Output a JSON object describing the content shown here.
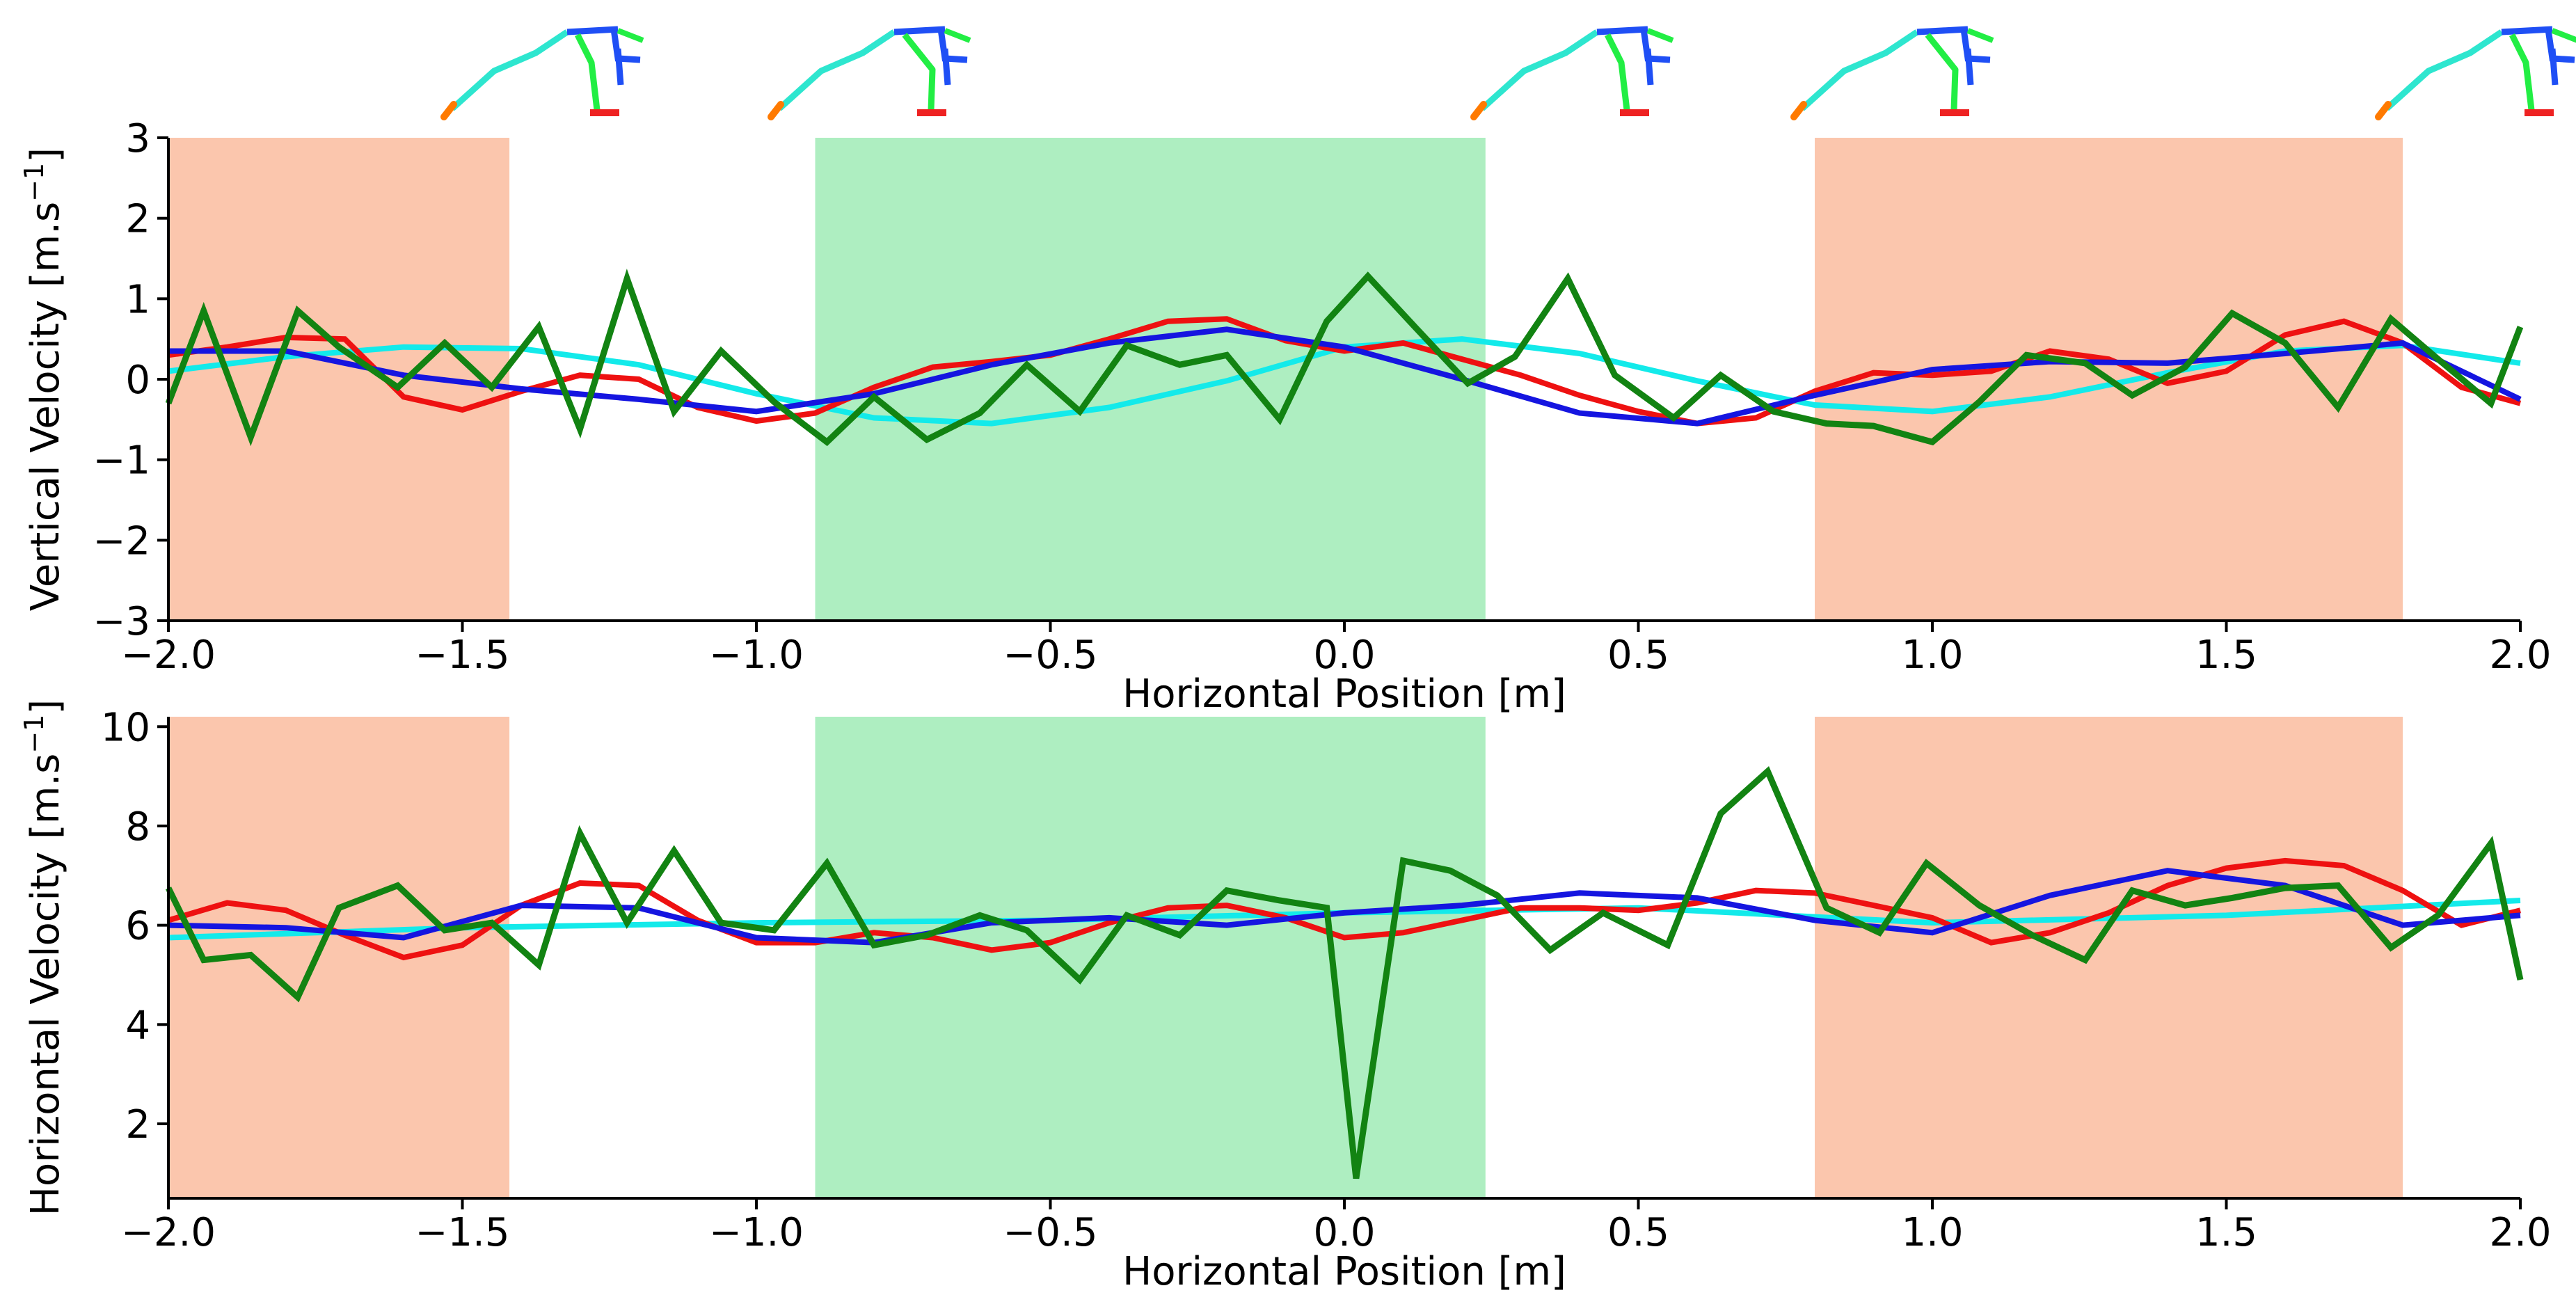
{
  "colors": {
    "stance_band": "#fbc6ad",
    "flight_band": "#aeeec1",
    "series_red": "#ee1111",
    "series_green": "#128312",
    "series_cyan": "#13eaea",
    "series_blue": "#1515e0",
    "skeleton_trunk": "#2ee6cf",
    "skeleton_arm": "#1f4ff5",
    "skeleton_leg": "#22ee44",
    "skeleton_foot": "#ee2222",
    "skeleton_toe": "#ff7a00"
  },
  "figure_icons": [
    "skeleton-pose-1-icon",
    "skeleton-pose-2-icon",
    "skeleton-pose-3-icon",
    "skeleton-pose-4-icon",
    "skeleton-pose-5-icon"
  ],
  "chart_data": [
    {
      "type": "line",
      "xlabel": "Horizontal Position [m]",
      "ylabel_main": "Vertical Velocity [m.s",
      "ylabel_sup": "−1",
      "ylabel_end": "]",
      "xlim": [
        -2.0,
        2.0
      ],
      "ylim": [
        -3,
        3
      ],
      "xticks": [
        -2.0,
        -1.5,
        -1.0,
        -0.5,
        0.0,
        0.5,
        1.0,
        1.5,
        2.0
      ],
      "xtick_labels": [
        "−2.0",
        "−1.5",
        "−1.0",
        "−0.5",
        "0.0",
        "0.5",
        "1.0",
        "1.5",
        "2.0"
      ],
      "yticks": [
        -3,
        -2,
        -1,
        0,
        1,
        2,
        3
      ],
      "ytick_labels": [
        "−3",
        "−2",
        "−1",
        "0",
        "1",
        "2",
        "3"
      ],
      "bands": [
        {
          "phase": "stance",
          "x0": -2.0,
          "x1": -1.42
        },
        {
          "phase": "flight",
          "x0": -0.9,
          "x1": 0.24
        },
        {
          "phase": "stance",
          "x0": 0.8,
          "x1": 1.8
        }
      ],
      "series": [
        {
          "name": "cyan",
          "x": [
            -2.0,
            -1.8,
            -1.6,
            -1.4,
            -1.2,
            -1.0,
            -0.8,
            -0.6,
            -0.4,
            -0.2,
            0.0,
            0.2,
            0.4,
            0.6,
            0.8,
            1.0,
            1.2,
            1.4,
            1.6,
            1.8,
            2.0
          ],
          "y": [
            0.1,
            0.28,
            0.4,
            0.38,
            0.18,
            -0.18,
            -0.48,
            -0.55,
            -0.35,
            -0.02,
            0.4,
            0.5,
            0.32,
            -0.02,
            -0.32,
            -0.4,
            -0.22,
            0.08,
            0.35,
            0.42,
            0.2
          ]
        },
        {
          "name": "red",
          "x": [
            -2.0,
            -1.9,
            -1.8,
            -1.7,
            -1.6,
            -1.5,
            -1.4,
            -1.3,
            -1.2,
            -1.1,
            -1.0,
            -0.9,
            -0.8,
            -0.7,
            -0.6,
            -0.5,
            -0.4,
            -0.3,
            -0.2,
            -0.1,
            0.0,
            0.1,
            0.2,
            0.3,
            0.4,
            0.5,
            0.6,
            0.7,
            0.8,
            0.9,
            1.0,
            1.1,
            1.2,
            1.3,
            1.4,
            1.5,
            1.6,
            1.7,
            1.8,
            1.9,
            2.0
          ],
          "y": [
            0.3,
            0.4,
            0.52,
            0.5,
            -0.22,
            -0.38,
            -0.15,
            0.05,
            0.0,
            -0.35,
            -0.52,
            -0.42,
            -0.1,
            0.15,
            0.22,
            0.3,
            0.5,
            0.72,
            0.75,
            0.48,
            0.35,
            0.45,
            0.25,
            0.05,
            -0.2,
            -0.4,
            -0.55,
            -0.48,
            -0.15,
            0.08,
            0.05,
            0.1,
            0.35,
            0.25,
            -0.05,
            0.1,
            0.55,
            0.72,
            0.45,
            -0.1,
            -0.3
          ]
        },
        {
          "name": "blue",
          "x": [
            -2.0,
            -1.8,
            -1.6,
            -1.4,
            -1.2,
            -1.0,
            -0.8,
            -0.6,
            -0.4,
            -0.2,
            0.0,
            0.2,
            0.4,
            0.6,
            0.8,
            1.0,
            1.2,
            1.4,
            1.6,
            1.8,
            2.0
          ],
          "y": [
            0.35,
            0.35,
            0.05,
            -0.12,
            -0.25,
            -0.4,
            -0.18,
            0.18,
            0.45,
            0.62,
            0.4,
            0.0,
            -0.42,
            -0.55,
            -0.2,
            0.12,
            0.22,
            0.2,
            0.32,
            0.45,
            -0.25
          ]
        },
        {
          "name": "green",
          "x": [
            -2.0,
            -1.94,
            -1.86,
            -1.78,
            -1.71,
            -1.61,
            -1.53,
            -1.45,
            -1.37,
            -1.3,
            -1.22,
            -1.14,
            -1.06,
            -0.97,
            -0.88,
            -0.8,
            -0.71,
            -0.62,
            -0.54,
            -0.45,
            -0.37,
            -0.28,
            -0.2,
            -0.11,
            -0.03,
            0.04,
            0.12,
            0.21,
            0.29,
            0.38,
            0.46,
            0.56,
            0.64,
            0.73,
            0.82,
            0.9,
            1.0,
            1.08,
            1.16,
            1.26,
            1.34,
            1.43,
            1.51,
            1.6,
            1.69,
            1.78,
            1.86,
            1.95,
            2.0
          ],
          "y": [
            -0.3,
            0.85,
            -0.72,
            0.85,
            0.4,
            -0.1,
            0.45,
            -0.1,
            0.65,
            -0.62,
            1.25,
            -0.4,
            0.35,
            -0.28,
            -0.78,
            -0.22,
            -0.75,
            -0.42,
            0.18,
            -0.4,
            0.42,
            0.18,
            0.3,
            -0.5,
            0.72,
            1.28,
            0.65,
            -0.05,
            0.28,
            1.25,
            0.05,
            -0.48,
            0.05,
            -0.4,
            -0.55,
            -0.58,
            -0.78,
            -0.28,
            0.3,
            0.2,
            -0.2,
            0.15,
            0.82,
            0.45,
            -0.35,
            0.75,
            0.25,
            -0.3,
            0.65
          ]
        }
      ]
    },
    {
      "type": "line",
      "xlabel": "Horizontal Position [m]",
      "ylabel_main": "Horizontal Velocity [m.s",
      "ylabel_sup": "−1",
      "ylabel_end": "]",
      "xlim": [
        -2.0,
        2.0
      ],
      "ylim": [
        0.5,
        10.2
      ],
      "xticks": [
        -2.0,
        -1.5,
        -1.0,
        -0.5,
        0.0,
        0.5,
        1.0,
        1.5,
        2.0
      ],
      "xtick_labels": [
        "−2.0",
        "−1.5",
        "−1.0",
        "−0.5",
        "0.0",
        "0.5",
        "1.0",
        "1.5",
        "2.0"
      ],
      "yticks": [
        2,
        4,
        6,
        8,
        10
      ],
      "ytick_labels": [
        "2",
        "4",
        "6",
        "8",
        "10"
      ],
      "bands": [
        {
          "phase": "stance",
          "x0": -2.0,
          "x1": -1.42
        },
        {
          "phase": "flight",
          "x0": -0.9,
          "x1": 0.24
        },
        {
          "phase": "stance",
          "x0": 0.8,
          "x1": 1.8
        }
      ],
      "series": [
        {
          "name": "cyan",
          "x": [
            -2.0,
            -1.5,
            -1.0,
            -0.5,
            0.0,
            0.5,
            1.0,
            1.5,
            2.0
          ],
          "y": [
            5.75,
            5.95,
            6.05,
            6.1,
            6.25,
            6.35,
            6.05,
            6.2,
            6.5
          ]
        },
        {
          "name": "red",
          "x": [
            -2.0,
            -1.9,
            -1.8,
            -1.7,
            -1.6,
            -1.5,
            -1.4,
            -1.3,
            -1.2,
            -1.1,
            -1.0,
            -0.9,
            -0.8,
            -0.7,
            -0.6,
            -0.5,
            -0.4,
            -0.3,
            -0.2,
            -0.1,
            0.0,
            0.1,
            0.2,
            0.3,
            0.4,
            0.5,
            0.6,
            0.7,
            0.8,
            0.9,
            1.0,
            1.1,
            1.2,
            1.3,
            1.4,
            1.5,
            1.6,
            1.7,
            1.8,
            1.9,
            2.0
          ],
          "y": [
            6.1,
            6.45,
            6.3,
            5.8,
            5.35,
            5.6,
            6.4,
            6.85,
            6.8,
            6.1,
            5.65,
            5.65,
            5.85,
            5.75,
            5.5,
            5.65,
            6.05,
            6.35,
            6.4,
            6.15,
            5.75,
            5.85,
            6.1,
            6.35,
            6.35,
            6.3,
            6.45,
            6.7,
            6.65,
            6.4,
            6.15,
            5.65,
            5.85,
            6.25,
            6.8,
            7.15,
            7.3,
            7.2,
            6.7,
            6.0,
            6.3
          ]
        },
        {
          "name": "blue",
          "x": [
            -2.0,
            -1.8,
            -1.6,
            -1.4,
            -1.2,
            -1.0,
            -0.8,
            -0.6,
            -0.4,
            -0.2,
            0.0,
            0.2,
            0.4,
            0.6,
            0.8,
            1.0,
            1.2,
            1.4,
            1.6,
            1.8,
            2.0
          ],
          "y": [
            6.0,
            5.95,
            5.75,
            6.4,
            6.35,
            5.75,
            5.65,
            6.05,
            6.15,
            6.0,
            6.25,
            6.4,
            6.65,
            6.55,
            6.1,
            5.85,
            6.6,
            7.1,
            6.8,
            6.0,
            6.2
          ]
        },
        {
          "name": "green",
          "x": [
            -2.0,
            -1.94,
            -1.86,
            -1.78,
            -1.71,
            -1.61,
            -1.53,
            -1.45,
            -1.37,
            -1.3,
            -1.22,
            -1.14,
            -1.06,
            -0.97,
            -0.88,
            -0.8,
            -0.71,
            -0.62,
            -0.54,
            -0.45,
            -0.37,
            -0.28,
            -0.2,
            -0.11,
            -0.03,
            0.02,
            0.1,
            0.18,
            0.26,
            0.35,
            0.44,
            0.55,
            0.64,
            0.72,
            0.82,
            0.91,
            0.99,
            1.08,
            1.17,
            1.26,
            1.34,
            1.43,
            1.51,
            1.6,
            1.69,
            1.78,
            1.86,
            1.95,
            2.0
          ],
          "y": [
            6.75,
            5.3,
            5.4,
            4.55,
            6.35,
            6.8,
            5.9,
            6.05,
            5.2,
            7.85,
            6.05,
            7.5,
            6.05,
            5.9,
            7.25,
            5.6,
            5.8,
            6.2,
            5.9,
            4.9,
            6.2,
            5.8,
            6.7,
            6.5,
            6.35,
            0.9,
            7.3,
            7.1,
            6.6,
            5.5,
            6.25,
            5.6,
            8.25,
            9.1,
            6.35,
            5.85,
            7.25,
            6.4,
            5.8,
            5.3,
            6.7,
            6.4,
            6.55,
            6.75,
            6.8,
            5.55,
            6.2,
            7.65,
            4.9
          ]
        }
      ]
    }
  ]
}
